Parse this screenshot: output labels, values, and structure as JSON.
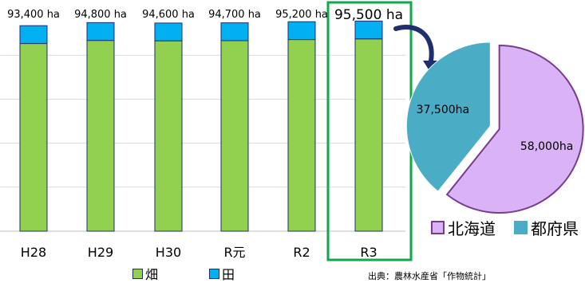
{
  "chart_data": [
    {
      "type": "bar",
      "stacked": true,
      "categories": [
        "H28",
        "H29",
        "H30",
        "R元",
        "R2",
        "R3"
      ],
      "totals": [
        "93,400 ha",
        "94,800 ha",
        "94,600 ha",
        "94,700 ha",
        "95,200 ha",
        "95,500 ha"
      ],
      "series": [
        {
          "name": "畑",
          "values": [
            85300,
            86700,
            86500,
            86600,
            87100,
            87400
          ],
          "color": "#92d050"
        },
        {
          "name": "田",
          "values": [
            8100,
            8100,
            8100,
            8100,
            8100,
            8100
          ],
          "color": "#00b0f0"
        }
      ],
      "ylim": [
        0,
        100000
      ],
      "grid": true,
      "highlight_category": "R3",
      "highlight_color": "#12a84a"
    },
    {
      "type": "pie",
      "labels": [
        "北海道",
        "都府県"
      ],
      "values": [
        58000,
        37500
      ],
      "value_labels": [
        "58,000ha",
        "37,500ha"
      ],
      "colors": [
        "#d9b3f5",
        "#4bacc6"
      ],
      "exploded": true
    }
  ],
  "legend": {
    "bar_items": [
      {
        "label": "畑",
        "color": "#92d050"
      },
      {
        "label": "田",
        "color": "#00b0f0"
      }
    ],
    "pie_items": [
      {
        "label": "北海道",
        "color": "#d9b3f5"
      },
      {
        "label": "都府県",
        "color": "#4bacc6"
      }
    ]
  },
  "source": "出典：農林水産省「作物統計」"
}
